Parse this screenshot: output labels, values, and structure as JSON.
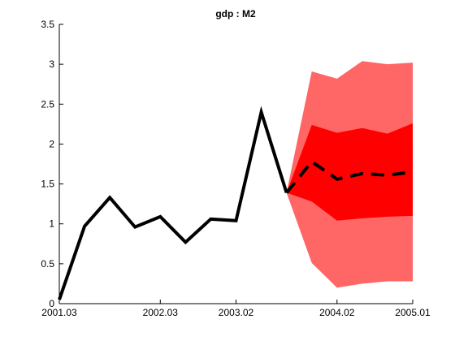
{
  "chart_data": {
    "type": "line",
    "title": "gdp : M2",
    "xlabel": "",
    "ylabel": "",
    "ylim": [
      0,
      3.5
    ],
    "grid": false,
    "colors": {
      "history": "#000000",
      "forecast_median": "#000000",
      "band_outer": "#ff6666",
      "band_inner": "#ff0000"
    },
    "x_tick_labels": [
      "2001.03",
      "2002.03",
      "2003.02",
      "2004.02",
      "2005.01"
    ],
    "y_ticks": [
      0,
      0.5,
      1,
      1.5,
      2,
      2.5,
      3,
      3.5
    ],
    "y_tick_labels": [
      "0",
      "0.5",
      "1",
      "1.5",
      "2",
      "2.5",
      "3",
      "3.5"
    ],
    "periods": [
      "2001.03",
      "2001.04",
      "2002.01",
      "2002.02",
      "2002.03",
      "2002.04",
      "2003.01",
      "2003.02",
      "2003.03",
      "2003.04",
      "2004.01",
      "2004.02",
      "2004.03",
      "2004.04",
      "2005.01"
    ],
    "series": [
      {
        "role": "history",
        "style": "solid",
        "x": [
          "2001.03",
          "2001.04",
          "2002.01",
          "2002.02",
          "2002.03",
          "2002.04",
          "2003.01",
          "2003.02",
          "2003.03",
          "2003.04"
        ],
        "values": [
          0.05,
          0.97,
          1.33,
          0.96,
          1.09,
          0.77,
          1.06,
          1.04,
          2.4,
          1.39
        ]
      },
      {
        "role": "forecast-median",
        "style": "dashed",
        "x": [
          "2003.04",
          "2004.01",
          "2004.02",
          "2004.03",
          "2004.04",
          "2005.01"
        ],
        "values": [
          1.39,
          1.78,
          1.56,
          1.63,
          1.61,
          1.65
        ]
      }
    ],
    "bands": [
      {
        "role": "outer",
        "x": [
          "2003.04",
          "2004.01",
          "2004.02",
          "2004.03",
          "2004.04",
          "2005.01"
        ],
        "lower": [
          1.39,
          0.51,
          0.2,
          0.25,
          0.28,
          0.28
        ],
        "upper": [
          1.39,
          2.91,
          2.82,
          3.04,
          3.0,
          3.02
        ]
      },
      {
        "role": "inner",
        "x": [
          "2003.04",
          "2004.01",
          "2004.02",
          "2004.03",
          "2004.04",
          "2005.01"
        ],
        "lower": [
          1.39,
          1.28,
          1.04,
          1.07,
          1.09,
          1.1
        ],
        "upper": [
          1.39,
          2.24,
          2.14,
          2.2,
          2.13,
          2.26
        ]
      }
    ]
  }
}
